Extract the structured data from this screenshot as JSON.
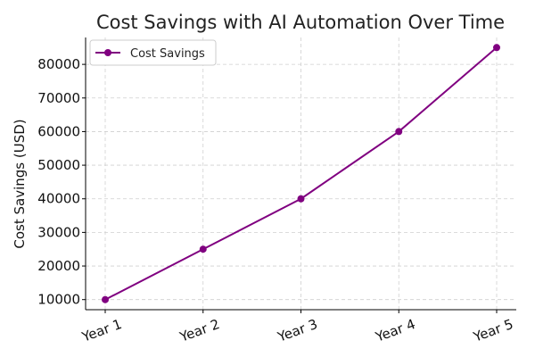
{
  "chart_data": {
    "type": "line",
    "title": "Cost Savings with AI Automation Over Time",
    "xlabel": "",
    "ylabel": "Cost Savings (USD)",
    "categories": [
      "Year 1",
      "Year 2",
      "Year 3",
      "Year 4",
      "Year 5"
    ],
    "series": [
      {
        "name": "Cost Savings",
        "values": [
          10000,
          25000,
          40000,
          60000,
          85000
        ],
        "color": "#800080"
      }
    ],
    "ylim": [
      7000,
      88000
    ],
    "yticks": [
      10000,
      20000,
      30000,
      40000,
      50000,
      60000,
      70000,
      80000
    ],
    "ytick_labels": [
      "10000",
      "20000",
      "30000",
      "40000",
      "50000",
      "60000",
      "70000",
      "80000"
    ],
    "grid": true,
    "grid_style": "dashed",
    "legend_position": "upper-left",
    "marker": "circle"
  }
}
